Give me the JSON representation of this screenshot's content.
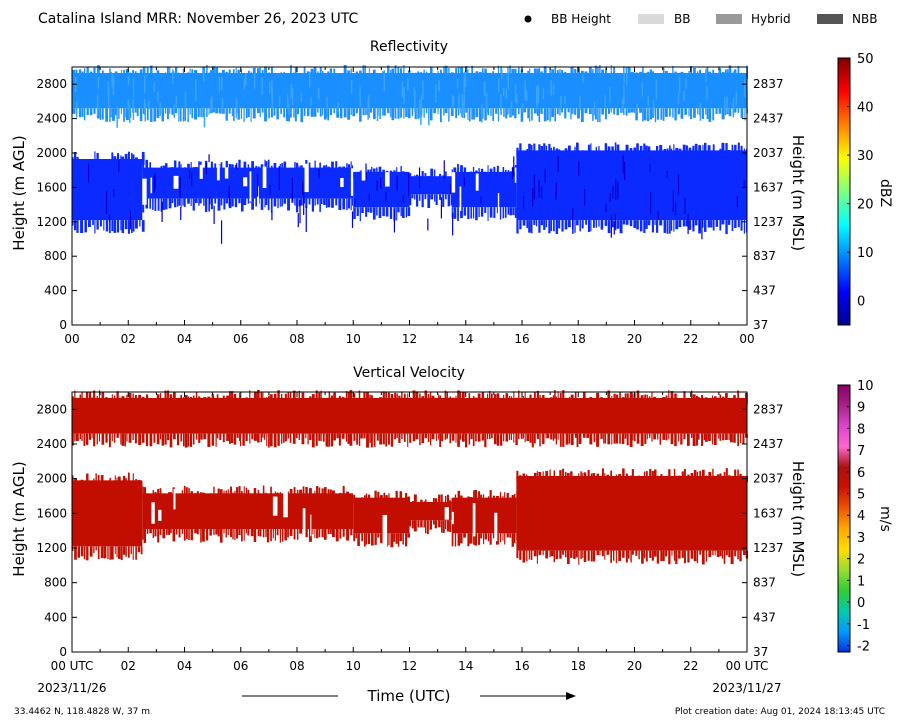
{
  "figure": {
    "title": "Catalina Island MRR:  November 26, 2023 UTC",
    "location": "33.4462 N, 118.4828 W, 37 m",
    "creation": "Plot creation date: Aug 01, 2024 18:13:45 UTC",
    "time_label": "Time (UTC)",
    "date_start": "2023/11/26",
    "date_end": "2023/11/27"
  },
  "legend": {
    "items": [
      {
        "label": "BB Height",
        "symbol": "dot",
        "color": "#000000"
      },
      {
        "label": "BB",
        "symbol": "patch",
        "color": "#d9d9d9"
      },
      {
        "label": "Hybrid",
        "symbol": "patch",
        "color": "#999999"
      },
      {
        "label": "NBB",
        "symbol": "patch",
        "color": "#555555"
      }
    ]
  },
  "chart_data": [
    {
      "type": "heatmap",
      "title": "Reflectivity",
      "ylabel": "Height (m AGL)",
      "ylabel_right": "Height (m MSL)",
      "xlim": [
        0,
        24
      ],
      "ylim": [
        0,
        3000
      ],
      "x_ticks": [
        "00",
        "02",
        "04",
        "06",
        "08",
        "10",
        "12",
        "14",
        "16",
        "18",
        "20",
        "22",
        "00"
      ],
      "y_ticks": [
        0,
        400,
        800,
        1200,
        1600,
        2000,
        2400,
        2800
      ],
      "y_ticks_right": [
        "37",
        "437",
        "837",
        "1237",
        "1637",
        "2037",
        "2437",
        "2837"
      ],
      "colorbar": {
        "label": "dBZ",
        "range": [
          -5,
          50
        ],
        "ticks": [
          "0",
          "10",
          "20",
          "30",
          "40",
          "50"
        ],
        "tick_values": [
          0,
          10,
          20,
          30,
          40,
          50
        ],
        "colors": [
          "#00008f",
          "#0000ff",
          "#007fff",
          "#00ffff",
          "#7fff7f",
          "#ffff00",
          "#ff7f00",
          "#ff0000",
          "#7f0000"
        ]
      },
      "dominant_color": "#0a2aff",
      "upper_color": "#1a8fff",
      "layers": [
        {
          "t": [
            0,
            2.5
          ],
          "bottom": 1150,
          "top": 2000
        },
        {
          "t": [
            2.5,
            10
          ],
          "bottom": 1400,
          "top": 1900
        },
        {
          "t": [
            10,
            12
          ],
          "bottom": 1300,
          "top": 1850
        },
        {
          "t": [
            12,
            13.5
          ],
          "bottom": 1450,
          "top": 1800
        },
        {
          "t": [
            13.5,
            15.8
          ],
          "bottom": 1300,
          "top": 1850
        },
        {
          "t": [
            15.8,
            24
          ],
          "bottom": 1150,
          "top": 2100
        }
      ],
      "upper_layer": {
        "t": [
          0,
          24
        ],
        "bottom": 2450,
        "top": 3000
      }
    },
    {
      "type": "heatmap",
      "title": "Vertical Velocity",
      "ylabel": "Height (m AGL)",
      "ylabel_right": "Height (m MSL)",
      "xlim": [
        0,
        24
      ],
      "ylim": [
        0,
        3000
      ],
      "x_ticks": [
        "00 UTC",
        "02",
        "04",
        "06",
        "08",
        "10",
        "12",
        "14",
        "16",
        "18",
        "20",
        "22",
        "00 UTC"
      ],
      "y_ticks": [
        0,
        400,
        800,
        1200,
        1600,
        2000,
        2400,
        2800
      ],
      "y_ticks_right": [
        "37",
        "437",
        "837",
        "1237",
        "1637",
        "2037",
        "2437",
        "2837"
      ],
      "colorbar": {
        "label": "m/s",
        "range": [
          -2.3,
          10
        ],
        "ticks": [
          "-2",
          "-1",
          "0",
          "1",
          "2",
          "3",
          "4",
          "5",
          "6",
          "7",
          "8",
          "9",
          "10"
        ],
        "tick_values": [
          -2,
          -1,
          0,
          1,
          2,
          3,
          4,
          5,
          6,
          7,
          8,
          9,
          10
        ],
        "colors": [
          "#0033dd",
          "#0099ff",
          "#00ccaa",
          "#33cc33",
          "#99dd33",
          "#ffdd00",
          "#ffaa00",
          "#ee5500",
          "#cc1100",
          "#aa1111",
          "#ff66cc",
          "#dd44cc",
          "#aa2288",
          "#880066"
        ]
      },
      "dominant_color": "#c10e00",
      "upper_color": "#c10e00",
      "layers": [
        {
          "t": [
            0,
            2.5
          ],
          "bottom": 1150,
          "top": 2050
        },
        {
          "t": [
            2.5,
            10
          ],
          "bottom": 1350,
          "top": 1900
        },
        {
          "t": [
            10,
            12
          ],
          "bottom": 1300,
          "top": 1850
        },
        {
          "t": [
            12,
            13.5
          ],
          "bottom": 1450,
          "top": 1800
        },
        {
          "t": [
            13.5,
            15.8
          ],
          "bottom": 1300,
          "top": 1850
        },
        {
          "t": [
            15.8,
            24
          ],
          "bottom": 1100,
          "top": 2100
        }
      ],
      "upper_layer": {
        "t": [
          0,
          24
        ],
        "bottom": 2450,
        "top": 3000
      }
    }
  ]
}
